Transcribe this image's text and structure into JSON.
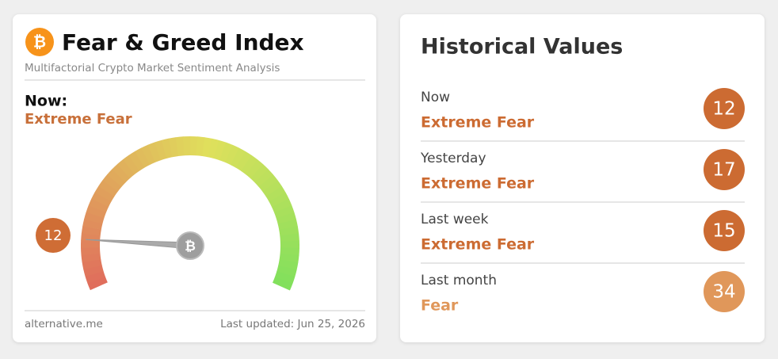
{
  "fear_greed_card": {
    "logo_symbol": "₿",
    "title": "Fear & Greed Index",
    "subtitle": "Multifactorial Crypto Market Sentiment Analysis",
    "now_label": "Now:",
    "classification": "Extreme Fear",
    "gauge": {
      "value": 12,
      "range": [
        0,
        100
      ],
      "color": "#cf6d35"
    },
    "footer_source": "alternative.me",
    "last_updated": "Last updated: Jun 25, 2026"
  },
  "historical_values": {
    "title": "Historical Values",
    "rows": [
      {
        "period": "Now",
        "classification": "Extreme Fear",
        "value": 12,
        "color": "#cc6b32"
      },
      {
        "period": "Yesterday",
        "classification": "Extreme Fear",
        "value": 17,
        "color": "#cc6b32"
      },
      {
        "period": "Last week",
        "classification": "Extreme Fear",
        "value": 15,
        "color": "#cc6b32"
      },
      {
        "period": "Last month",
        "classification": "Fear",
        "value": 34,
        "color": "#e0975a"
      }
    ]
  }
}
